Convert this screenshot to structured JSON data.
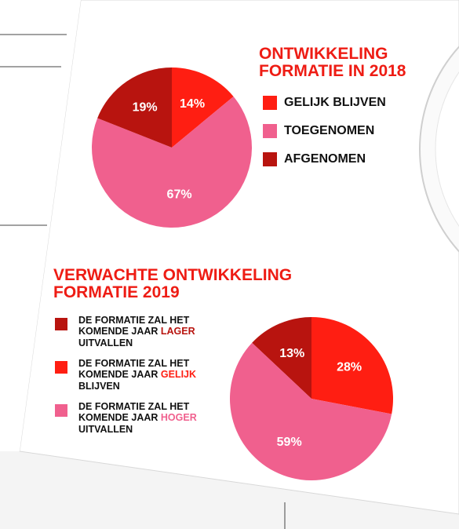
{
  "chart_data": [
    {
      "type": "pie",
      "title": "ONTWIKKELING FORMATIE IN 2018",
      "categories": [
        "GELIJK BLIJVEN",
        "TOEGENOMEN",
        "AFGENOMEN"
      ],
      "values": [
        14,
        67,
        19
      ],
      "value_labels": [
        "14%",
        "67%",
        "19%"
      ],
      "colors": [
        "#ff1e12",
        "#f0608e",
        "#b8140f"
      ],
      "start_angle": 0
    },
    {
      "type": "pie",
      "title": "VERWACHTE ONTWIKKELING FORMATIE 2019",
      "categories": [
        "DE FORMATIE ZAL HET KOMENDE JAAR LAGER UITVALLEN",
        "DE FORMATIE ZAL HET KOMENDE JAAR GELIJK BLIJVEN",
        "DE FORMATIE ZAL HET KOMENDE JAAR HOGER UITVALLEN"
      ],
      "values": [
        13,
        28,
        59
      ],
      "value_labels": [
        "13%",
        "28%",
        "59%"
      ],
      "colors": [
        "#b8140f",
        "#ff1e12",
        "#f0608e"
      ],
      "start_angle": -46.8
    }
  ]
}
